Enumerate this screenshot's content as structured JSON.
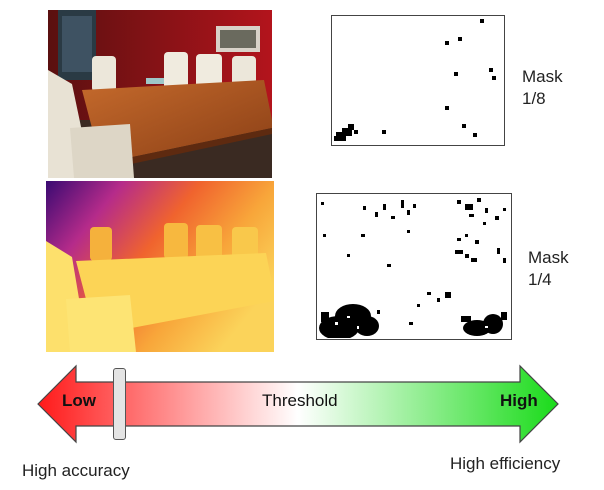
{
  "mask_top": {
    "label_line1": "Mask",
    "label_line2": "1/8"
  },
  "mask_bottom": {
    "label_line1": "Mask",
    "label_line2": "1/4"
  },
  "arrow": {
    "left_label": "Low",
    "center_label": "Threshold",
    "right_label": "High",
    "left_color": "#ff1a1a",
    "right_color": "#1adb1a"
  },
  "captions": {
    "left": "High accuracy",
    "right": "High efficiency"
  }
}
